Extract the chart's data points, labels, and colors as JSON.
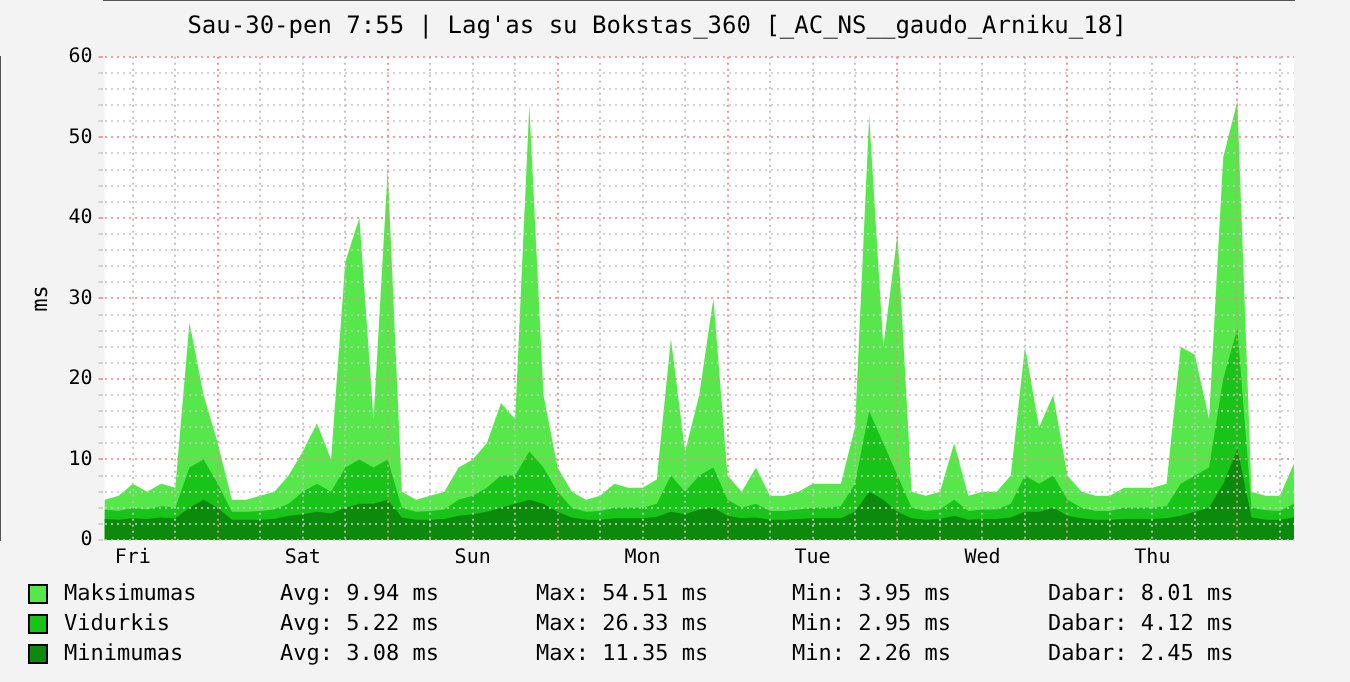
{
  "chart_data": {
    "type": "area",
    "title": "Sau-30-pen 7:55 | Lag'as su Bokstas_360 [_AC_NS__gaudo_Arniku_18]",
    "ylabel": "ms",
    "categories": [
      null,
      null,
      "Fri",
      null,
      null,
      null,
      null,
      null,
      null,
      null,
      null,
      null,
      null,
      null,
      "Sat",
      null,
      null,
      null,
      null,
      null,
      null,
      null,
      null,
      null,
      null,
      null,
      "Sun",
      null,
      null,
      null,
      null,
      null,
      null,
      null,
      null,
      null,
      null,
      null,
      "Mon",
      null,
      null,
      null,
      null,
      null,
      null,
      null,
      null,
      null,
      null,
      null,
      "Tue",
      null,
      null,
      null,
      null,
      null,
      null,
      null,
      null,
      null,
      null,
      null,
      "Wed",
      null,
      null,
      null,
      null,
      null,
      null,
      null,
      null,
      null,
      null,
      null,
      "Thu",
      null,
      null,
      null,
      null,
      null,
      null,
      null,
      null,
      null,
      null
    ],
    "series": [
      {
        "name": "Maksimumas",
        "color": "#56e84a",
        "values": [
          5,
          5.5,
          7,
          6,
          7,
          6.5,
          27,
          18,
          12,
          5,
          5,
          5.5,
          6,
          8,
          11,
          14.5,
          10,
          34.5,
          40,
          15,
          46,
          6,
          5,
          5.5,
          6,
          9,
          10,
          12,
          17,
          15,
          54,
          18,
          9,
          6,
          5,
          5.5,
          7,
          6.5,
          6.5,
          7.5,
          25,
          11,
          18,
          30,
          8,
          6,
          9,
          5.5,
          5.5,
          6,
          7,
          7,
          7,
          14,
          52.7,
          24,
          38,
          6,
          5.5,
          6,
          12,
          5.5,
          6,
          6,
          8,
          24,
          14,
          18,
          8,
          6,
          5.5,
          5.5,
          6.5,
          6.5,
          6.5,
          7,
          24,
          23,
          15,
          47.5,
          54.5,
          6,
          5.5,
          5.5,
          9.5
        ]
      },
      {
        "name": "Vidurkis",
        "color": "#18c418",
        "values": [
          3.8,
          3.6,
          4,
          3.8,
          4.2,
          4,
          9,
          10,
          7,
          3.5,
          3.5,
          3.6,
          3.8,
          4.5,
          6,
          7,
          6,
          9,
          10,
          9,
          10,
          4,
          3.5,
          3.6,
          3.8,
          5,
          5.5,
          6.5,
          8,
          8,
          11,
          9,
          6,
          4,
          3.5,
          3.6,
          4,
          4,
          4,
          4.5,
          8,
          6,
          8,
          9,
          5,
          4,
          4.5,
          3.6,
          3.6,
          3.8,
          4,
          4,
          4.2,
          7,
          16,
          12,
          8,
          4,
          3.6,
          3.8,
          5,
          3.6,
          3.8,
          3.8,
          4.5,
          8,
          7,
          8,
          5,
          4,
          3.6,
          3.6,
          4,
          4,
          4,
          4.2,
          7,
          8,
          9,
          20,
          26.3,
          4,
          3.7,
          3.6,
          4.5
        ]
      },
      {
        "name": "Minimumas",
        "color": "#0b8a0b",
        "values": [
          2.6,
          2.5,
          2.7,
          2.6,
          2.8,
          2.7,
          4,
          5,
          4,
          2.5,
          2.5,
          2.5,
          2.6,
          3,
          3.2,
          3.5,
          3.3,
          4,
          4.5,
          4.5,
          5,
          2.8,
          2.5,
          2.5,
          2.6,
          3,
          3.2,
          3.5,
          4,
          4.5,
          5,
          4.5,
          3.5,
          2.8,
          2.5,
          2.5,
          2.7,
          2.7,
          2.7,
          2.9,
          3.5,
          3.2,
          3.8,
          4,
          3,
          2.7,
          2.8,
          2.5,
          2.5,
          2.6,
          2.7,
          2.7,
          2.7,
          3.5,
          6,
          5,
          3.5,
          2.7,
          2.5,
          2.6,
          3,
          2.5,
          2.6,
          2.6,
          2.8,
          3.5,
          3.5,
          4,
          3,
          2.7,
          2.5,
          2.5,
          2.6,
          2.6,
          2.6,
          2.7,
          3,
          3.5,
          4,
          7,
          11.3,
          2.8,
          2.5,
          2.5,
          2.8
        ]
      }
    ],
    "ylim": [
      0,
      60
    ],
    "yticks": [
      0,
      {
        "value": 2,
        "label": null
      },
      {
        "value": 4,
        "label": null
      },
      {
        "value": 6,
        "label": null
      },
      {
        "value": 8,
        "label": null
      },
      10,
      {
        "value": 12,
        "label": null
      },
      {
        "value": 14,
        "label": null
      },
      {
        "value": 16,
        "label": null
      },
      {
        "value": 18,
        "label": null
      },
      20,
      {
        "value": 22,
        "label": null
      },
      {
        "value": 24,
        "label": null
      },
      {
        "value": 26,
        "label": null
      },
      {
        "value": 28,
        "label": null
      },
      30,
      {
        "value": 32,
        "label": null
      },
      {
        "value": 34,
        "label": null
      },
      {
        "value": 36,
        "label": null
      },
      {
        "value": 38,
        "label": null
      },
      40,
      {
        "value": 42,
        "label": null
      },
      {
        "value": 44,
        "label": null
      },
      {
        "value": 46,
        "label": null
      },
      {
        "value": 48,
        "label": null
      },
      50,
      {
        "value": 52,
        "label": null
      },
      {
        "value": 54,
        "label": null
      },
      {
        "value": 56,
        "label": null
      },
      {
        "value": 58,
        "label": null
      },
      60
    ],
    "grid": true,
    "legend": "bottom left",
    "marker": "none",
    "annotations": [
      "Avg: 9.94 ms",
      "Max: 54.51 ms",
      "Min: 3.95 ms",
      "Dabar: 8.01 ms",
      "Avg: 5.22 ms",
      "Max: 26.33 ms",
      "Min: 2.95 ms",
      "Dabar: 4.12 ms",
      "Avg: 3.08 ms",
      "Max: 11.35 ms",
      "Min: 2.26 ms",
      "Dabar: 2.45 ms"
    ]
  }
}
